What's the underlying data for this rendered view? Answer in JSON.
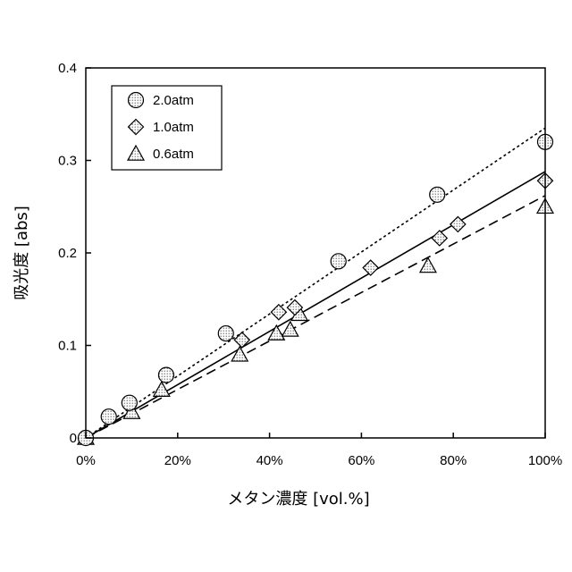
{
  "chart_data": {
    "type": "scatter",
    "xlabel": "メタン濃度 [vol.%]",
    "ylabel": "吸光度 [abs]",
    "xlim": [
      0,
      100
    ],
    "ylim": [
      0,
      0.4
    ],
    "x_ticks": [
      0,
      20,
      40,
      60,
      80,
      100
    ],
    "x_tick_labels": [
      "0%",
      "20%",
      "40%",
      "60%",
      "80%",
      "100%"
    ],
    "y_ticks": [
      0,
      0.1,
      0.2,
      0.3,
      0.4
    ],
    "y_tick_labels": [
      "0",
      "0.1",
      "0.2",
      "0.3",
      "0.4"
    ],
    "grid": false,
    "legend_position": "top-left",
    "series": [
      {
        "name": "2.0atm",
        "marker": "circle",
        "line_style": "dotted",
        "x": [
          0,
          5,
          9.5,
          17.5,
          30.5,
          55,
          76.5,
          100
        ],
        "y": [
          0,
          0.023,
          0.038,
          0.068,
          0.113,
          0.191,
          0.263,
          0.32
        ],
        "fit": [
          [
            0,
            0
          ],
          [
            100,
            0.335
          ]
        ]
      },
      {
        "name": "1.0atm",
        "marker": "diamond",
        "line_style": "solid",
        "x": [
          0,
          34,
          42,
          45.5,
          62,
          77,
          81,
          100
        ],
        "y": [
          0,
          0.106,
          0.136,
          0.141,
          0.184,
          0.216,
          0.231,
          0.278
        ],
        "fit": [
          [
            0,
            0
          ],
          [
            100,
            0.288
          ]
        ]
      },
      {
        "name": "0.6atm",
        "marker": "triangle",
        "line_style": "dashed",
        "x": [
          0,
          10,
          16.5,
          33.5,
          41.5,
          44.5,
          46.5,
          74.5,
          100
        ],
        "y": [
          0,
          0.028,
          0.052,
          0.09,
          0.113,
          0.117,
          0.134,
          0.186,
          0.25
        ],
        "fit": [
          [
            0,
            0
          ],
          [
            100,
            0.262
          ]
        ]
      }
    ]
  }
}
